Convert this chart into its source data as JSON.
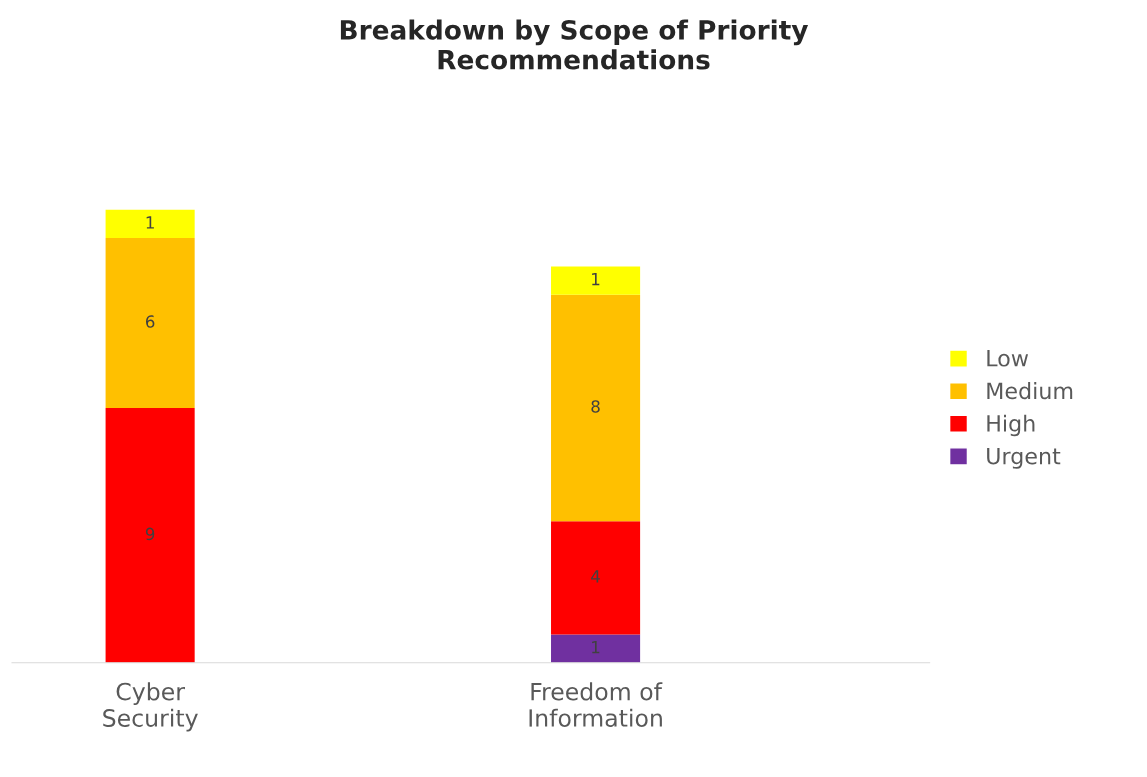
{
  "chart_data": {
    "type": "bar",
    "title": "Breakdown by Scope of Priority\nRecommendations",
    "categories": [
      "Cyber\nSecurity",
      "Freedom of\nInformation"
    ],
    "stacked": true,
    "data_labels": true,
    "legend": "right",
    "grid": false,
    "series": [
      {
        "name": "Urgent",
        "color": "#7030a0",
        "values": [
          null,
          1
        ]
      },
      {
        "name": "High",
        "color": "#ff0000",
        "values": [
          9,
          4
        ]
      },
      {
        "name": "Medium",
        "color": "#ffc000",
        "values": [
          6,
          8
        ]
      },
      {
        "name": "Low",
        "color": "#ffff00",
        "values": [
          1,
          1
        ]
      }
    ]
  }
}
